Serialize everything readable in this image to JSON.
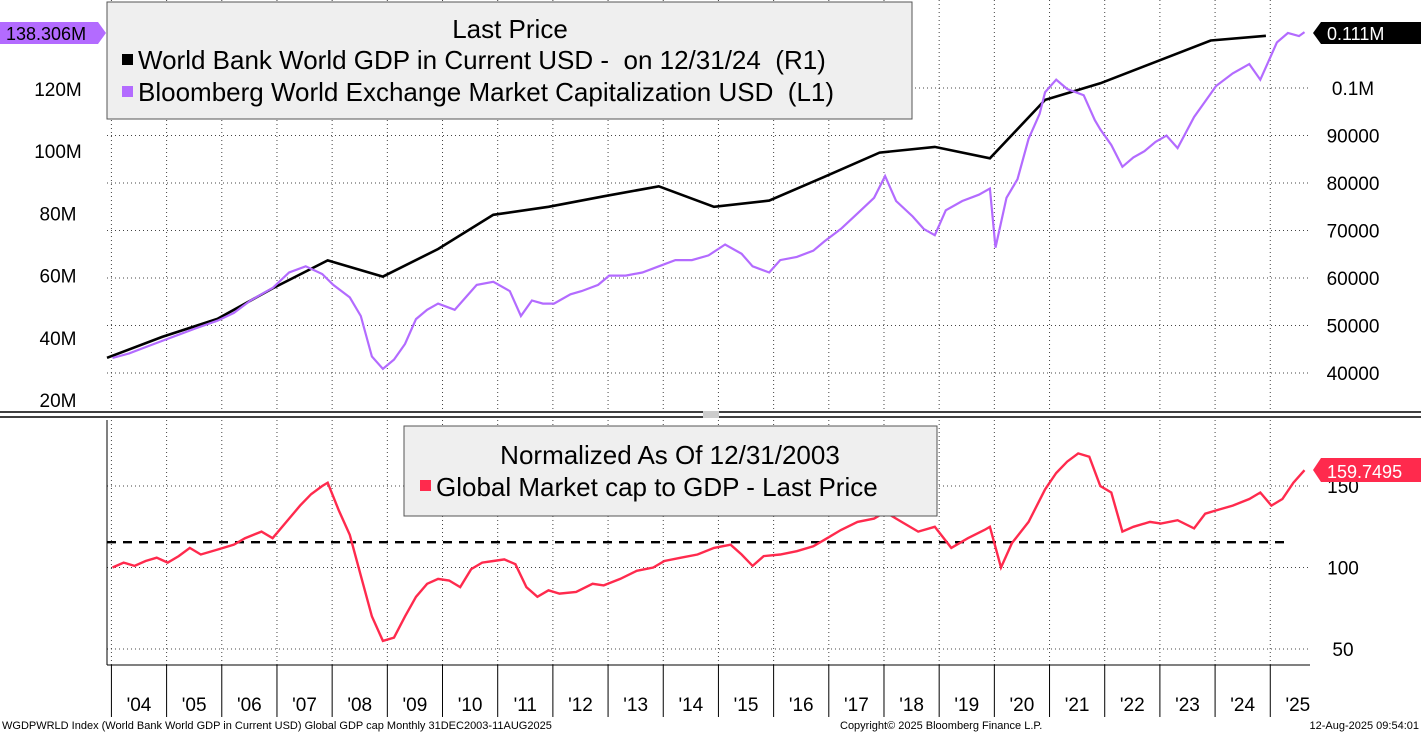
{
  "chart_data": [
    {
      "type": "line",
      "panel": "top",
      "legend_title": "Last Price",
      "legend_placement": "top-left",
      "grid": true,
      "x_ticks": [
        "'04",
        "'05",
        "'06",
        "'07",
        "'08",
        "'09",
        "'10",
        "'11",
        "'12",
        "'13",
        "'14",
        "'15",
        "'16",
        "'17",
        "'18",
        "'19",
        "'20",
        "'21",
        "'22",
        "'23",
        "'24",
        "'25"
      ],
      "y_left": {
        "ticks": [
          20,
          40,
          60,
          80,
          100,
          120
        ],
        "tick_labels": [
          "20M",
          "40M",
          "60M",
          "80M",
          "100M",
          "120M"
        ],
        "ylim": [
          20,
          140
        ],
        "unit": "M"
      },
      "y_right": {
        "ticks": [
          40000,
          50000,
          60000,
          70000,
          80000,
          90000,
          100000
        ],
        "tick_labels": [
          "40000",
          "50000",
          "60000",
          "70000",
          "80000",
          "90000",
          "0.1M"
        ],
        "ylim": [
          35000,
          110000
        ]
      },
      "series": [
        {
          "name": "World Bank World GDP in Current USD -  on 12/31/24  (R1)",
          "axis": "right",
          "color": "#000000",
          "last_value_label": "0.111M",
          "x": [
            2003.9,
            2004.9,
            2005.9,
            2006.9,
            2007.9,
            2008.9,
            2009.9,
            2010.9,
            2011.9,
            2012.9,
            2013.9,
            2014.9,
            2015.9,
            2016.9,
            2017.9,
            2018.9,
            2019.9,
            2020.9,
            2021.9,
            2022.9,
            2023.9,
            2024.9
          ],
          "y": [
            43200,
            47600,
            51400,
            57800,
            63700,
            60300,
            66100,
            73300,
            75000,
            77200,
            79300,
            75000,
            76300,
            81300,
            86400,
            87600,
            85200,
            97500,
            101000,
            105500,
            110000,
            111000
          ]
        },
        {
          "name": "Bloomberg World Exchange Market Capitalization USD  (L1)",
          "axis": "left",
          "color": "#b36bff",
          "last_value_label": "138.306M",
          "x": [
            2004.0,
            2004.3,
            2004.6,
            2004.9,
            2005.2,
            2005.5,
            2005.9,
            2006.2,
            2006.5,
            2006.9,
            2007.2,
            2007.5,
            2007.8,
            2008.0,
            2008.3,
            2008.5,
            2008.7,
            2008.9,
            2009.1,
            2009.3,
            2009.5,
            2009.7,
            2009.9,
            2010.2,
            2010.4,
            2010.6,
            2010.9,
            2011.2,
            2011.4,
            2011.6,
            2011.8,
            2012.0,
            2012.3,
            2012.5,
            2012.8,
            2013.0,
            2013.3,
            2013.6,
            2013.9,
            2014.2,
            2014.5,
            2014.8,
            2015.1,
            2015.4,
            2015.6,
            2015.9,
            2016.1,
            2016.4,
            2016.7,
            2016.9,
            2017.2,
            2017.5,
            2017.8,
            2018.0,
            2018.2,
            2018.5,
            2018.7,
            2018.9,
            2019.1,
            2019.4,
            2019.7,
            2019.9,
            2020.0,
            2020.2,
            2020.4,
            2020.6,
            2020.8,
            2020.9,
            2021.1,
            2021.3,
            2021.6,
            2021.8,
            2021.9,
            2022.1,
            2022.3,
            2022.5,
            2022.7,
            2022.9,
            2023.1,
            2023.3,
            2023.6,
            2023.8,
            2024.0,
            2024.3,
            2024.6,
            2024.8,
            2024.9,
            2025.1,
            2025.3,
            2025.5,
            2025.6
          ],
          "y": [
            33.5,
            35,
            37,
            39,
            41,
            43,
            45.5,
            48,
            52,
            56,
            61,
            63,
            60.5,
            57,
            53,
            47,
            34,
            30,
            33,
            38,
            46,
            49,
            51,
            49,
            53,
            57,
            58,
            55,
            47,
            52,
            51,
            51,
            54,
            55,
            57,
            60,
            60,
            61,
            63,
            65,
            65,
            66.5,
            70,
            67,
            63,
            61,
            65,
            66,
            68,
            71,
            75,
            80,
            85,
            92,
            84,
            79,
            75,
            73,
            81,
            84,
            86,
            88,
            69,
            85,
            91,
            104,
            112,
            119,
            123,
            120,
            118,
            110,
            107,
            102,
            95,
            98,
            100,
            103,
            105,
            101,
            111,
            116,
            121,
            125,
            128,
            123,
            127,
            135,
            138,
            137,
            138.3
          ]
        }
      ]
    },
    {
      "type": "line",
      "panel": "bottom",
      "legend_title": "Normalized As Of 12/31/2003",
      "legend_placement": "top-center",
      "grid": true,
      "y_right": {
        "ticks": [
          50,
          100,
          150
        ],
        "tick_labels": [
          "50",
          "100",
          "150"
        ],
        "ylim": [
          40,
          180
        ]
      },
      "reference_line": {
        "value": 115.5,
        "style": "dashed",
        "color": "#000000"
      },
      "series": [
        {
          "name": "Global Market cap to GDP - Last Price",
          "axis": "right",
          "color": "#ff2a4d",
          "last_value_label": "159.7495",
          "x": [
            2004.0,
            2004.2,
            2004.4,
            2004.6,
            2004.8,
            2005.0,
            2005.2,
            2005.4,
            2005.6,
            2005.9,
            2006.2,
            2006.4,
            2006.7,
            2006.9,
            2007.2,
            2007.4,
            2007.6,
            2007.8,
            2007.9,
            2008.1,
            2008.3,
            2008.5,
            2008.7,
            2008.9,
            2009.1,
            2009.3,
            2009.5,
            2009.7,
            2009.9,
            2010.1,
            2010.3,
            2010.5,
            2010.7,
            2010.9,
            2011.1,
            2011.3,
            2011.5,
            2011.7,
            2011.9,
            2012.1,
            2012.4,
            2012.7,
            2012.9,
            2013.2,
            2013.5,
            2013.8,
            2014.0,
            2014.3,
            2014.6,
            2014.9,
            2015.2,
            2015.4,
            2015.6,
            2015.8,
            2016.1,
            2016.4,
            2016.7,
            2016.9,
            2017.2,
            2017.5,
            2017.8,
            2018.0,
            2018.3,
            2018.6,
            2018.9,
            2019.2,
            2019.5,
            2019.8,
            2019.9,
            2020.1,
            2020.3,
            2020.6,
            2020.9,
            2021.1,
            2021.3,
            2021.5,
            2021.7,
            2021.9,
            2022.1,
            2022.3,
            2022.5,
            2022.8,
            2023.0,
            2023.3,
            2023.6,
            2023.8,
            2024.0,
            2024.3,
            2024.6,
            2024.8,
            2025.0,
            2025.2,
            2025.4,
            2025.6
          ],
          "y": [
            100,
            103,
            101,
            104,
            106,
            103,
            107,
            112,
            108,
            111,
            114,
            118,
            122,
            118,
            130,
            138,
            145,
            150,
            152,
            135,
            120,
            95,
            70,
            55,
            57,
            70,
            82,
            90,
            93,
            92,
            88,
            99,
            103,
            104,
            105,
            102,
            88,
            82,
            86,
            84,
            85,
            90,
            89,
            93,
            98,
            100,
            104,
            106,
            108,
            112,
            114,
            108,
            101,
            107,
            108,
            110,
            113,
            117,
            123,
            128,
            130,
            134,
            128,
            122,
            125,
            112,
            118,
            123,
            125,
            100,
            115,
            128,
            148,
            158,
            165,
            170,
            168,
            150,
            146,
            122,
            125,
            128,
            127,
            129,
            124,
            133,
            135,
            138,
            142,
            146,
            138,
            142,
            152,
            159.7
          ]
        }
      ]
    }
  ],
  "footer": {
    "left": "WGDPWRLD Index (World Bank World GDP in Current USD) Global GDP cap  Monthly 31DEC2003-11AUG2025",
    "center": "Copyright© 2025 Bloomberg Finance L.P.",
    "right": "12-Aug-2025 09:54:01"
  },
  "colors": {
    "gdp": "#000000",
    "mcap": "#b36bff",
    "ratio": "#ff2a4d",
    "legend_bg": "#efefef",
    "grid": "#555555"
  }
}
